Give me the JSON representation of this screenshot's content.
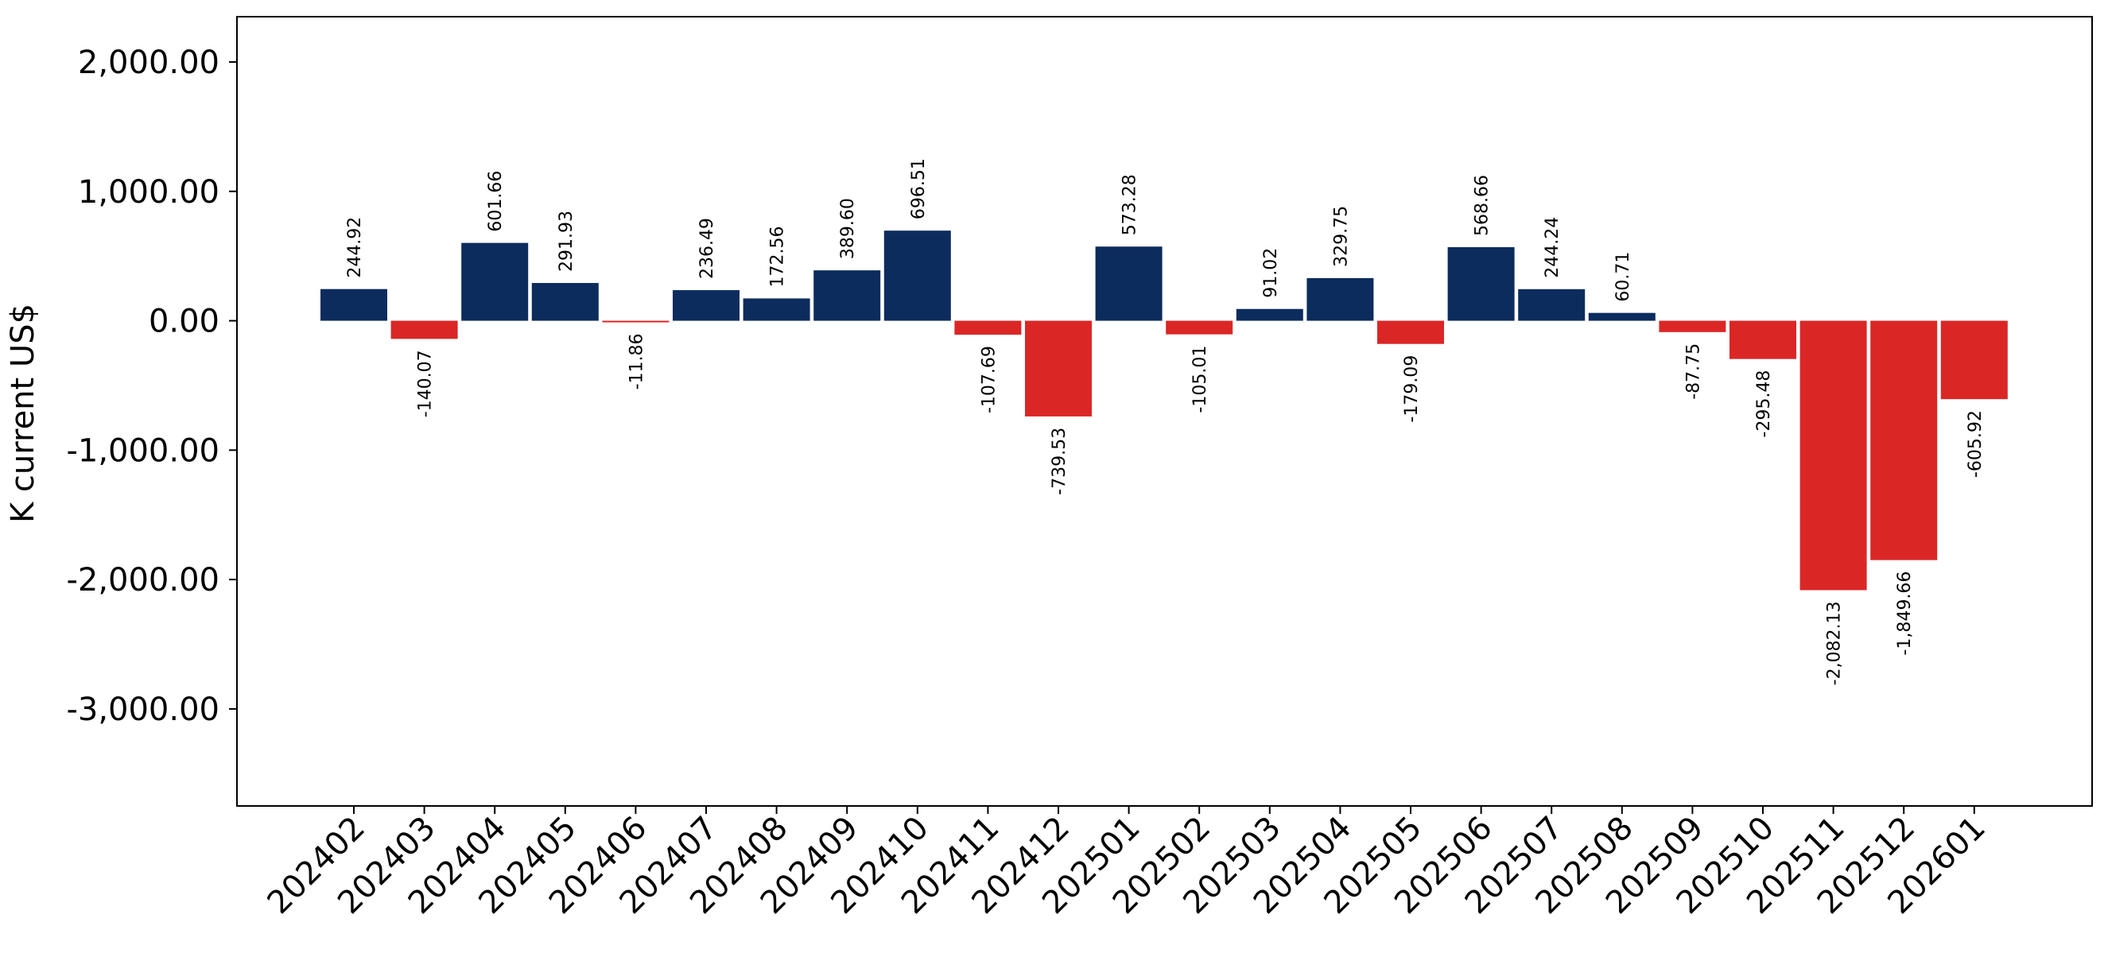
{
  "colors": {
    "positive": "#0d2c5e",
    "negative": "#db2626"
  },
  "chart_data": {
    "type": "bar",
    "title": "",
    "xlabel": "",
    "ylabel": "K current US$",
    "ylim": [
      -3750,
      2350
    ],
    "yticks": [
      2000,
      1000,
      0,
      -1000,
      -2000,
      -3000
    ],
    "ytick_labels": [
      "2,000.00",
      "1,000.00",
      "0.00",
      "-1,000.00",
      "-2,000.00",
      "-3,000.00"
    ],
    "grid": false,
    "categories": [
      "202402",
      "202403",
      "202404",
      "202405",
      "202406",
      "202407",
      "202408",
      "202409",
      "202410",
      "202411",
      "202412",
      "202501",
      "202502",
      "202503",
      "202504",
      "202505",
      "202506",
      "202507",
      "202508",
      "202509",
      "202510",
      "202511",
      "202512",
      "202601"
    ],
    "values": [
      244.92,
      -140.07,
      601.66,
      291.93,
      -11.86,
      236.49,
      172.56,
      389.6,
      696.51,
      -107.69,
      -739.53,
      573.28,
      -105.01,
      91.02,
      329.75,
      -179.09,
      568.66,
      244.24,
      60.71,
      -87.75,
      -295.48,
      -2082.13,
      -1849.66,
      -605.92
    ],
    "value_labels": [
      "244.92",
      "-140.07",
      "601.66",
      "291.93",
      "-11.86",
      "236.49",
      "172.56",
      "389.60",
      "696.51",
      "-107.69",
      "-739.53",
      "573.28",
      "-105.01",
      "91.02",
      "329.75",
      "-179.09",
      "568.66",
      "244.24",
      "60.71",
      "-87.75",
      "-295.48",
      "-2,082.13",
      "-1,849.66",
      "-605.92"
    ]
  }
}
